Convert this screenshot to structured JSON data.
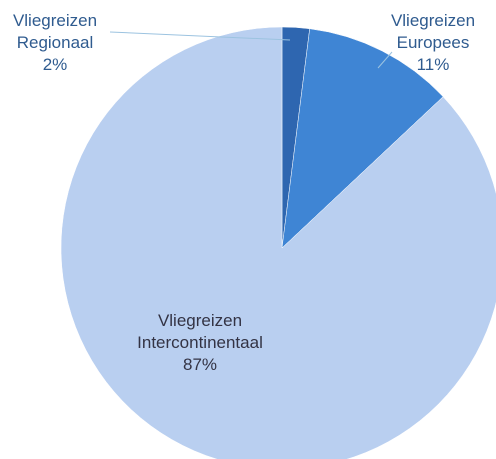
{
  "chart_data": {
    "type": "pie",
    "categories": [
      "Vliegreizen Regionaal",
      "Vliegreizen Europees",
      "Vliegreizen Intercontinentaal"
    ],
    "values": [
      2,
      11,
      87
    ],
    "value_labels": [
      "2%",
      "11%",
      "87%"
    ],
    "colors": [
      "#2e66b0",
      "#3f85d4",
      "#b9cff0"
    ]
  }
}
